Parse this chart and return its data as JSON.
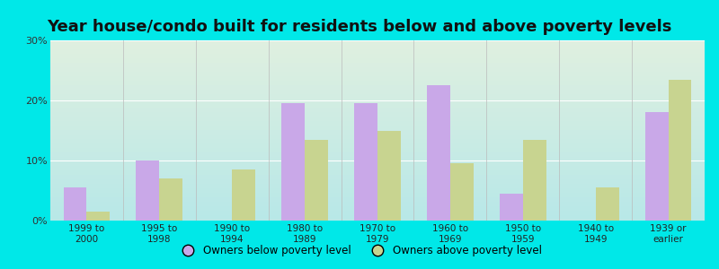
{
  "title": "Year house/condo built for residents below and above poverty levels",
  "categories": [
    "1999 to\n2000",
    "1995 to\n1998",
    "1990 to\n1994",
    "1980 to\n1989",
    "1970 to\n1979",
    "1960 to\n1969",
    "1950 to\n1959",
    "1940 to\n1949",
    "1939 or\nearlier"
  ],
  "below_poverty": [
    5.5,
    10.0,
    0.0,
    19.5,
    19.5,
    22.5,
    4.5,
    0.0,
    18.0
  ],
  "above_poverty": [
    1.5,
    7.0,
    8.5,
    13.5,
    15.0,
    9.5,
    13.5,
    5.5,
    23.5
  ],
  "color_below": "#c9a8e8",
  "color_above": "#c8d490",
  "ylim": [
    0,
    30
  ],
  "yticks": [
    0,
    10,
    20,
    30
  ],
  "ytick_labels": [
    "0%",
    "10%",
    "20%",
    "30%"
  ],
  "legend_below": "Owners below poverty level",
  "legend_above": "Owners above poverty level",
  "bg_color_outer": "#00e8e8",
  "bg_grad_top": "#e0f0e0",
  "bg_grad_bottom": "#b8e8e8",
  "title_fontsize": 13,
  "bar_width": 0.32
}
